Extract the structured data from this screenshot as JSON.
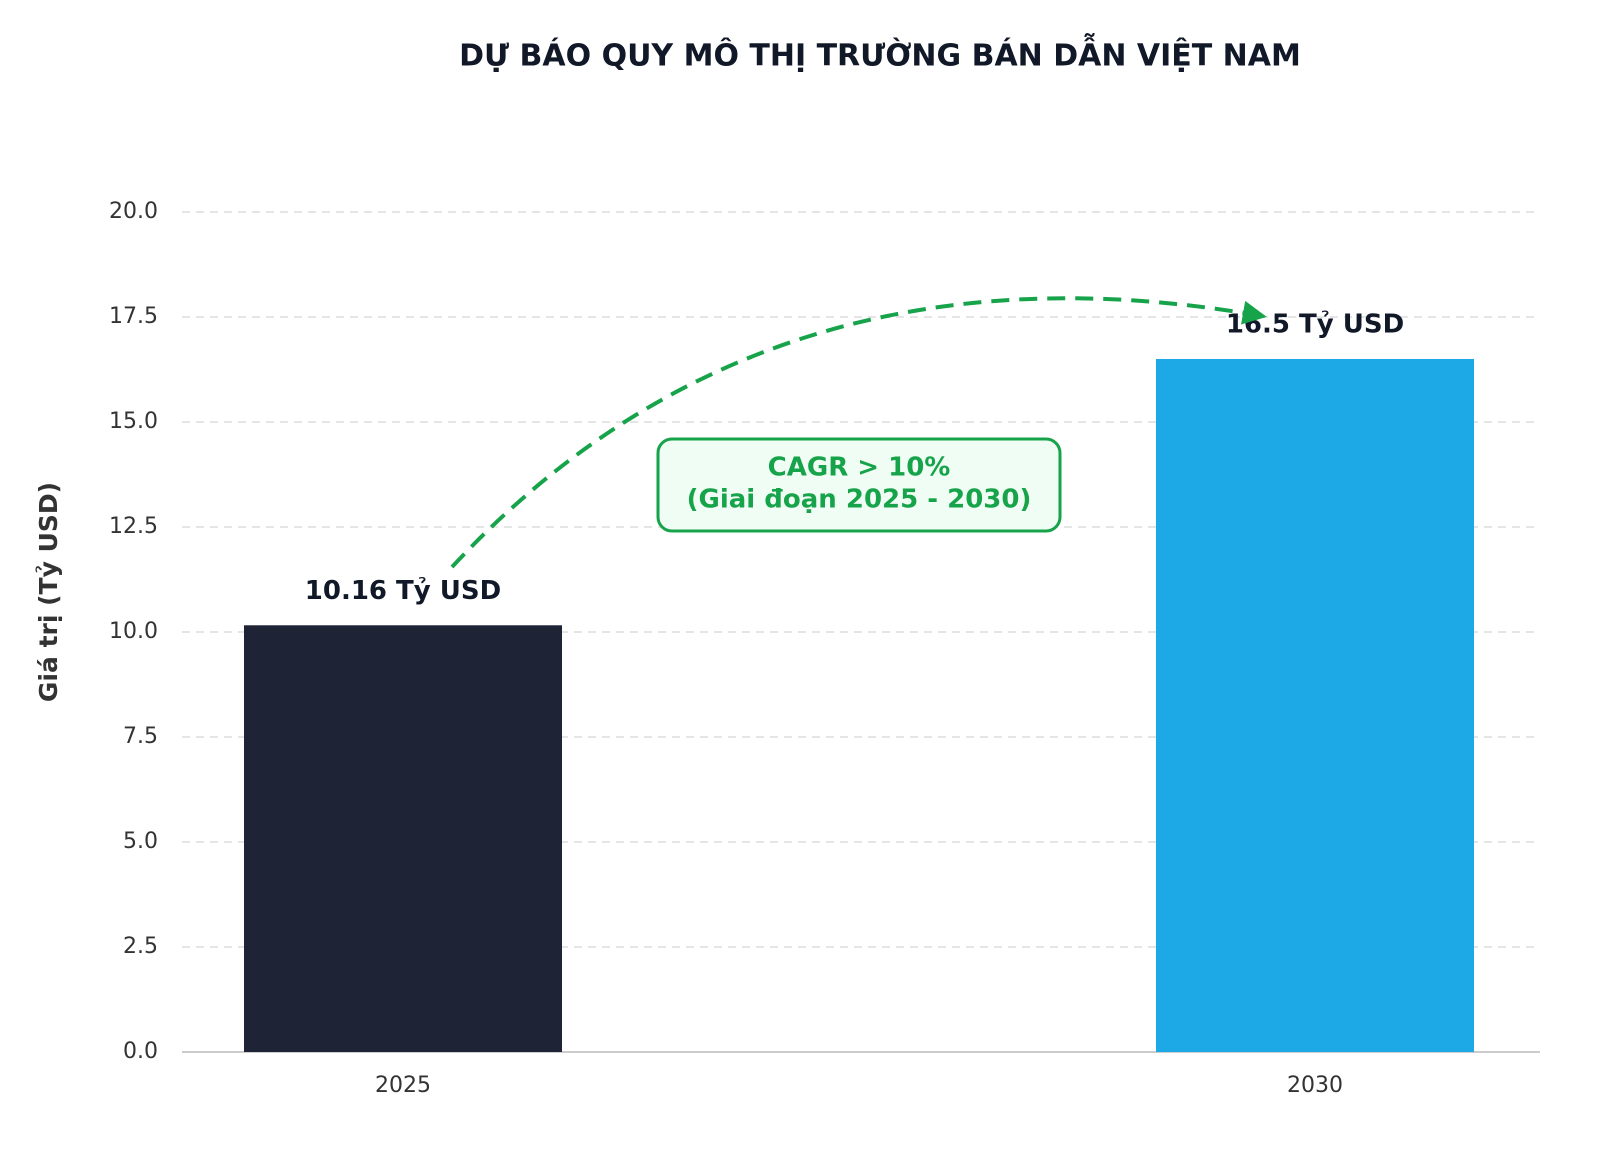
{
  "chart_data": {
    "type": "bar",
    "title": "DỰ BÁO QUY MÔ THỊ TRƯỜNG BÁN DẪN VIỆT NAM",
    "y_label": "Giá trị (Tỷ USD)",
    "categories": [
      "2025",
      "2030"
    ],
    "values": [
      10.16,
      16.5
    ],
    "value_labels": [
      "10.16 Tỷ USD",
      "16.5 Tỷ USD"
    ],
    "colors": [
      "#1e2335",
      "#1da8e6"
    ],
    "ylim": [
      0,
      20
    ],
    "yticks": [
      {
        "value": 0,
        "label": "0.0"
      },
      2.5,
      {
        "value": 5,
        "label": "5.0"
      },
      7.5,
      {
        "value": 10,
        "label": "10.0"
      },
      12.5,
      {
        "value": 15,
        "label": "15.0"
      },
      17.5,
      {
        "value": 20,
        "label": "20.0"
      }
    ],
    "grid": true,
    "annotation": [
      "CAGR > 10%",
      "(Giai đoạn 2025 - 2030)"
    ],
    "annotation_color": "#16a34a"
  }
}
